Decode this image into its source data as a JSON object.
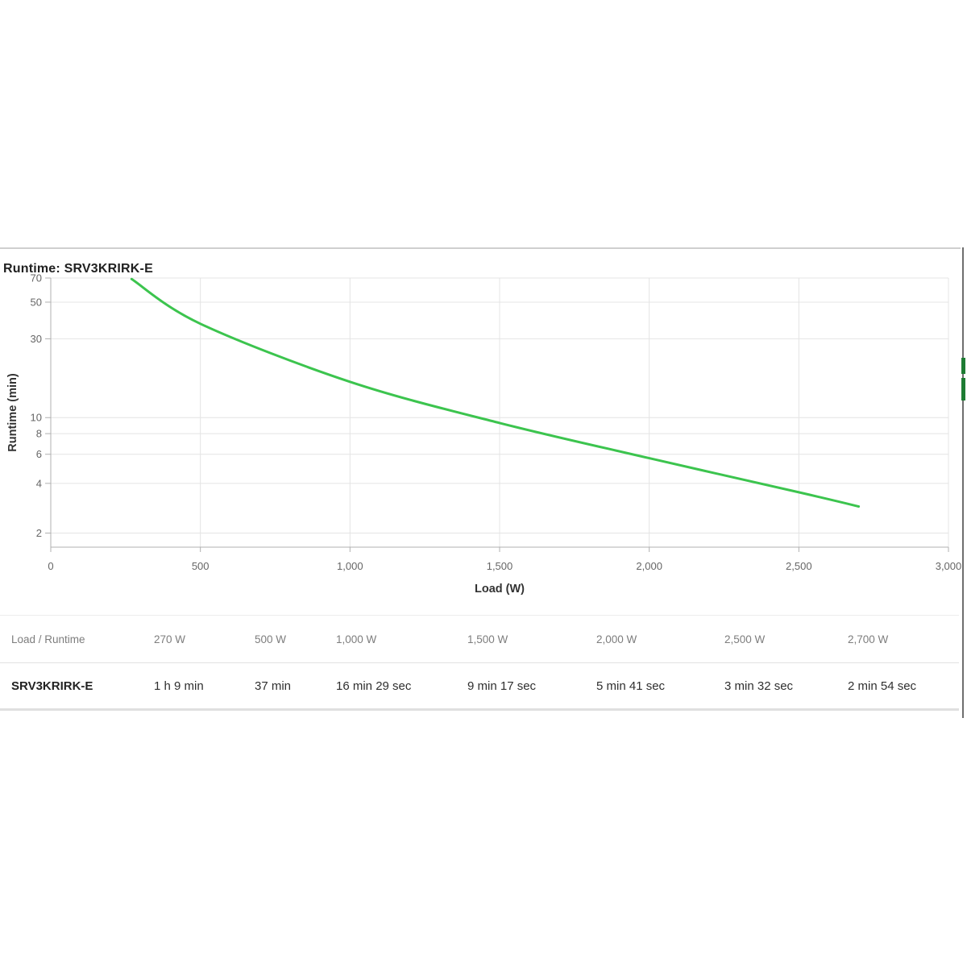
{
  "page": {
    "title": "Runtime: SRV3KRIRK-E"
  },
  "chart_data": {
    "type": "line",
    "title": "Runtime: SRV3KRIRK-E",
    "xlabel": "Load (W)",
    "ylabel": "Runtime (min)",
    "x_axis": {
      "min": 0,
      "max": 3000,
      "ticks": [
        0,
        500,
        1000,
        1500,
        2000,
        2500,
        3000
      ],
      "tick_labels": [
        "0",
        "500",
        "1,000",
        "1,500",
        "2,000",
        "2,500",
        "3,000"
      ]
    },
    "y_axis": {
      "scale": "log",
      "top_value": 70,
      "bottom_value": 1.65,
      "ticks": [
        70,
        50,
        30,
        10,
        8,
        6,
        4,
        2
      ],
      "tick_labels": [
        "70",
        "50",
        "30",
        "10",
        "8",
        "6",
        "4",
        "2"
      ]
    },
    "grid": true,
    "legend": false,
    "series": [
      {
        "name": "SRV3KRIRK-E",
        "color": "#3cc44e",
        "points": [
          {
            "load_w": 270,
            "runtime_min": 69.0
          },
          {
            "load_w": 500,
            "runtime_min": 37.0
          },
          {
            "load_w": 1000,
            "runtime_min": 16.483
          },
          {
            "load_w": 1500,
            "runtime_min": 9.283
          },
          {
            "load_w": 2000,
            "runtime_min": 5.683
          },
          {
            "load_w": 2500,
            "runtime_min": 3.533
          },
          {
            "load_w": 2700,
            "runtime_min": 2.9
          }
        ]
      }
    ]
  },
  "table": {
    "corner_label": "Load / Runtime",
    "column_headers": [
      "270 W",
      "500 W",
      "1,000 W",
      "1,500 W",
      "2,000 W",
      "2,500 W",
      "2,700 W"
    ],
    "rows": [
      {
        "label": "SRV3KRIRK-E",
        "values": [
          "1 h 9 min",
          "37 min",
          "16 min 29 sec",
          "9 min 17 sec",
          "5 min 41 sec",
          "3 min 32 sec",
          "2 min 54 sec"
        ]
      }
    ]
  },
  "scrollbar": {
    "marker_color": "#1e7c33",
    "markers": [
      {
        "y": 444,
        "height": 20
      },
      {
        "y": 469,
        "height": 28
      }
    ]
  },
  "colors": {
    "curve_green": "#3cc44e",
    "grid_line": "#e4e4e4",
    "axis_line": "#b0b0b0",
    "tick_text": "#666666",
    "axis_title_text": "#333333"
  }
}
